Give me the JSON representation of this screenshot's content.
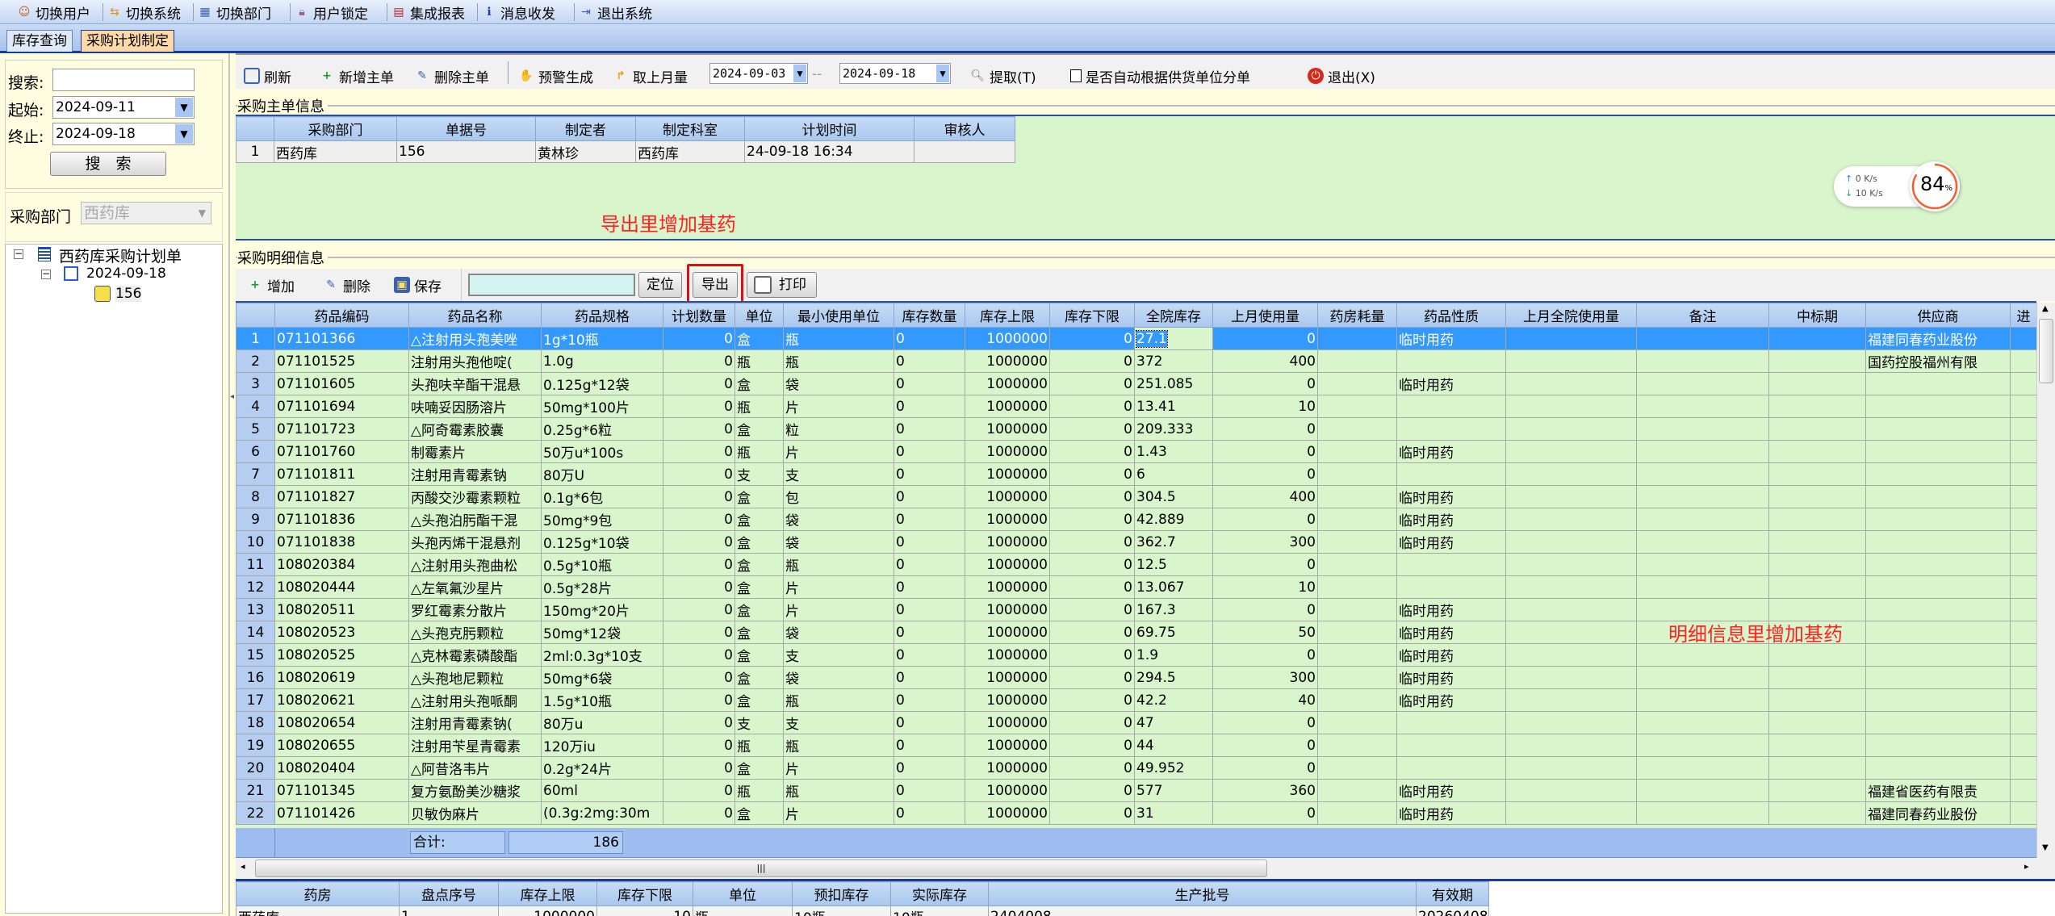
{
  "topbar": {
    "items": [
      {
        "label": "切换用户",
        "icon": "switch-user-icon"
      },
      {
        "label": "切换系统",
        "icon": "switch-system-icon"
      },
      {
        "label": "切换部门",
        "icon": "switch-department-icon"
      },
      {
        "label": "用户锁定",
        "icon": "user-lock-icon"
      },
      {
        "label": "集成报表",
        "icon": "report-icon"
      },
      {
        "label": "消息收发",
        "icon": "info-icon"
      },
      {
        "label": "退出系统",
        "icon": "exit-icon"
      }
    ]
  },
  "tabs": [
    {
      "label": "库存查询",
      "active": false
    },
    {
      "label": "采购计划制定",
      "active": true
    }
  ],
  "left": {
    "search_label": "搜索:",
    "search_value": "",
    "start_label": "起始:",
    "start_value": "2024-09-11",
    "end_label": "终止:",
    "end_value": "2024-09-18",
    "search_button": "搜　索",
    "dept_label": "采购部门",
    "dept_value": "西药库",
    "tree": {
      "root": "西药库采购计划单",
      "date": "2024-09-18",
      "doc": "156"
    }
  },
  "toolbar": {
    "refresh": "刷新",
    "new_master": "新增主单",
    "delete_master": "删除主单",
    "warn_generate": "预警生成",
    "last_month": "取上月量",
    "date_from": "2024-09-03",
    "date_sep": "--",
    "date_to": "2024-09-18",
    "fetch": "提取(T)",
    "auto_split_label": "是否自动根据供货单位分单",
    "auto_split_checked": false,
    "exit": "退出(X)"
  },
  "master": {
    "title": "采购主单信息",
    "columns": [
      "采购部门",
      "单据号",
      "制定者",
      "制定科室",
      "计划时间",
      "审核人"
    ],
    "rows": [
      [
        "1",
        "西药库",
        "156",
        "黄林珍",
        "西药库",
        "24-09-18 16:34",
        ""
      ]
    ]
  },
  "annotation_master": "导出里增加基药",
  "detail": {
    "title": "采购明细信息",
    "add": "增加",
    "delete": "删除",
    "save": "保存",
    "locate_value": "",
    "locate": "定位",
    "export": "导出",
    "print": "打印",
    "columns": [
      "药品编码",
      "药品名称",
      "药品规格",
      "计划数量",
      "单位",
      "最小使用单位",
      "库存数量",
      "库存上限",
      "库存下限",
      "全院库存",
      "上月使用量",
      "药房耗量",
      "药品性质",
      "上月全院使用量",
      "备注",
      "中标期",
      "供应商",
      "进"
    ],
    "rows": [
      [
        "071101366",
        "△注射用头孢美唑",
        "1g*10瓶",
        "0",
        "盒",
        "瓶",
        "0",
        "1000000",
        "0",
        "27.1",
        "0",
        "",
        "临时用药",
        "",
        "",
        "",
        "福建同春药业股份",
        ""
      ],
      [
        "071101525",
        "注射用头孢他啶(",
        "1.0g",
        "0",
        "瓶",
        "瓶",
        "0",
        "1000000",
        "0",
        "372",
        "400",
        "",
        "",
        "",
        "",
        "",
        "国药控股福州有限",
        ""
      ],
      [
        "071101605",
        "头孢呋辛酯干混悬",
        "0.125g*12袋",
        "0",
        "盒",
        "袋",
        "0",
        "1000000",
        "0",
        "251.085",
        "0",
        "",
        "临时用药",
        "",
        "",
        "",
        "",
        ""
      ],
      [
        "071101694",
        "呋喃妥因肠溶片",
        "50mg*100片",
        "0",
        "瓶",
        "片",
        "0",
        "1000000",
        "0",
        "13.41",
        "10",
        "",
        "",
        "",
        "",
        "",
        "",
        ""
      ],
      [
        "071101723",
        "△阿奇霉素胶囊",
        "0.25g*6粒",
        "0",
        "盒",
        "粒",
        "0",
        "1000000",
        "0",
        "209.333",
        "0",
        "",
        "",
        "",
        "",
        "",
        "",
        ""
      ],
      [
        "071101760",
        "制霉素片",
        "50万u*100s",
        "0",
        "瓶",
        "片",
        "0",
        "1000000",
        "0",
        "1.43",
        "0",
        "",
        "临时用药",
        "",
        "",
        "",
        "",
        ""
      ],
      [
        "071101811",
        "注射用青霉素钠",
        "80万U",
        "0",
        "支",
        "支",
        "0",
        "1000000",
        "0",
        "6",
        "0",
        "",
        "",
        "",
        "",
        "",
        "",
        ""
      ],
      [
        "071101827",
        "丙酸交沙霉素颗粒",
        "0.1g*6包",
        "0",
        "盒",
        "包",
        "0",
        "1000000",
        "0",
        "304.5",
        "400",
        "",
        "临时用药",
        "",
        "",
        "",
        "",
        ""
      ],
      [
        "071101836",
        "△头孢泊肟酯干混",
        "50mg*9包",
        "0",
        "盒",
        "袋",
        "0",
        "1000000",
        "0",
        "42.889",
        "0",
        "",
        "临时用药",
        "",
        "",
        "",
        "",
        ""
      ],
      [
        "071101838",
        "头孢丙烯干混悬剂",
        "0.125g*10袋",
        "0",
        "盒",
        "袋",
        "0",
        "1000000",
        "0",
        "362.7",
        "300",
        "",
        "临时用药",
        "",
        "",
        "",
        "",
        ""
      ],
      [
        "108020384",
        "△注射用头孢曲松",
        "0.5g*10瓶",
        "0",
        "盒",
        "瓶",
        "0",
        "1000000",
        "0",
        "12.5",
        "0",
        "",
        "",
        "",
        "",
        "",
        "",
        ""
      ],
      [
        "108020444",
        "△左氧氟沙星片",
        "0.5g*28片",
        "0",
        "盒",
        "片",
        "0",
        "1000000",
        "0",
        "13.067",
        "10",
        "",
        "",
        "",
        "",
        "",
        "",
        ""
      ],
      [
        "108020511",
        "罗红霉素分散片",
        "150mg*20片",
        "0",
        "盒",
        "片",
        "0",
        "1000000",
        "0",
        "167.3",
        "0",
        "",
        "临时用药",
        "",
        "",
        "",
        "",
        ""
      ],
      [
        "108020523",
        "△头孢克肟颗粒",
        "50mg*12袋",
        "0",
        "盒",
        "袋",
        "0",
        "1000000",
        "0",
        "69.75",
        "50",
        "",
        "临时用药",
        "",
        "",
        "",
        "",
        ""
      ],
      [
        "108020525",
        "△克林霉素磷酸酯",
        "2ml:0.3g*10支",
        "0",
        "盒",
        "支",
        "0",
        "1000000",
        "0",
        "1.9",
        "0",
        "",
        "临时用药",
        "",
        "",
        "",
        "",
        ""
      ],
      [
        "108020619",
        "△头孢地尼颗粒",
        "50mg*6袋",
        "0",
        "盒",
        "袋",
        "0",
        "1000000",
        "0",
        "294.5",
        "300",
        "",
        "临时用药",
        "",
        "",
        "",
        "",
        ""
      ],
      [
        "108020621",
        "△注射用头孢哌酮",
        "1.5g*10瓶",
        "0",
        "盒",
        "瓶",
        "0",
        "1000000",
        "0",
        "42.2",
        "40",
        "",
        "临时用药",
        "",
        "",
        "",
        "",
        ""
      ],
      [
        "108020654",
        "注射用青霉素钠(",
        "80万u",
        "0",
        "支",
        "支",
        "0",
        "1000000",
        "0",
        "47",
        "0",
        "",
        "",
        "",
        "",
        "",
        "",
        ""
      ],
      [
        "108020655",
        "注射用苄星青霉素",
        "120万iu",
        "0",
        "瓶",
        "瓶",
        "0",
        "1000000",
        "0",
        "44",
        "0",
        "",
        "",
        "",
        "",
        "",
        "",
        ""
      ],
      [
        "108020404",
        "△阿昔洛韦片",
        "0.2g*24片",
        "0",
        "盒",
        "片",
        "0",
        "1000000",
        "0",
        "49.952",
        "0",
        "",
        "",
        "",
        "",
        "",
        "",
        ""
      ],
      [
        "071101345",
        "复方氨酚美沙糖浆",
        "60ml",
        "0",
        "瓶",
        "瓶",
        "0",
        "1000000",
        "0",
        "577",
        "360",
        "",
        "临时用药",
        "",
        "",
        "",
        "福建省医药有限责",
        ""
      ],
      [
        "071101426",
        "贝敏伪麻片",
        "(0.3g:2mg:30m",
        "0",
        "盒",
        "片",
        "0",
        "1000000",
        "0",
        "31",
        "0",
        "",
        "临时用药",
        "",
        "",
        "",
        "福建同春药业股份",
        ""
      ]
    ],
    "total_label": "合计:",
    "total_value": "186"
  },
  "annotation_detail": "明细信息里增加基药",
  "stock": {
    "columns": [
      "药房",
      "盘点序号",
      "库存上限",
      "库存下限",
      "单位",
      "预扣库存",
      "实际库存",
      "生产批号",
      "有效期"
    ],
    "rows": [
      [
        "西药库",
        "1",
        "1000000",
        "10",
        "瓶",
        "10瓶",
        "10瓶",
        "2404008",
        "20260408"
      ]
    ]
  },
  "net_widget": {
    "up": "0 K/s",
    "down": "10 K/s",
    "percent": 84,
    "percent_text": "84",
    "percent_unit": "%"
  },
  "colors": {
    "grid_bg": "#d9f5cc",
    "selected_row": "#3399ff",
    "header": "#b0cbf0",
    "active_tab": "#fdd9a8",
    "annotation": "#ff2020"
  }
}
